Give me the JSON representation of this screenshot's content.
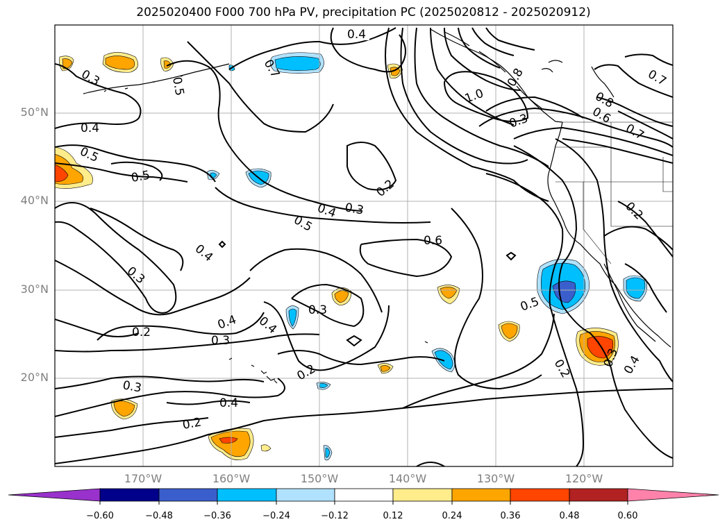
{
  "title": "2025020400 F000 700 hPa PV, precipitation PC (2025020812 - 2025020912)",
  "latitude_labels": [
    "50°N",
    "40°N",
    "30°N",
    "20°N"
  ],
  "longitude_labels": [
    "170°W",
    "160°W",
    "150°W",
    "140°W",
    "130°W",
    "120°W"
  ],
  "contour_labels": [
    "0.4",
    "0.3",
    "0.5",
    "0.7",
    "1.0",
    "0.8",
    "0.3",
    "0.8",
    "0.6",
    "0.7",
    "0.7",
    "0.4",
    "0.5",
    "0.5",
    "0.2",
    "0.4",
    "0.3",
    "0.5",
    "0.2",
    "0.4",
    "0.6",
    "0.3",
    "0.3",
    "0.4",
    "0.4",
    "0.5",
    "0.2",
    "0.3",
    "0.2",
    "0.2",
    "0.3",
    "0.4",
    "0.2",
    "0.3",
    "0.4"
  ],
  "colorbar": {
    "ticks": [
      "−0.60",
      "−0.48",
      "−0.36",
      "−0.24",
      "−0.12",
      "0.12",
      "0.24",
      "0.36",
      "0.48",
      "0.60"
    ],
    "colors": [
      "#9932cc",
      "#00008b",
      "#3a5fcd",
      "#00bfff",
      "#b0e2ff",
      "#ffffff",
      "#ffec8b",
      "#ffa500",
      "#ff4500",
      "#b22222",
      "#ff82ab"
    ]
  }
}
